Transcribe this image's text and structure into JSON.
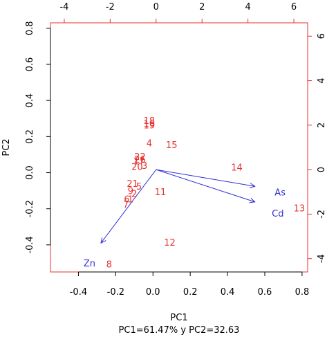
{
  "chart_data": {
    "type": "scatter",
    "subtype": "pca-biplot",
    "xlabel": "PC1",
    "ylabel": "PC2",
    "subtitle": "PC1=61.47% y PC2=32.63",
    "xlim": [
      -0.55,
      0.83
    ],
    "ylim": [
      -0.55,
      0.83
    ],
    "x_ticks": [
      -0.4,
      -0.2,
      0.0,
      0.2,
      0.4,
      0.6,
      0.8
    ],
    "y_ticks": [
      -0.4,
      -0.2,
      0.0,
      0.2,
      0.4,
      0.6,
      0.8
    ],
    "loadings_xlim": [
      -4.6,
      6.6
    ],
    "loadings_ylim": [
      -4.6,
      6.6
    ],
    "top_ticks": [
      -4,
      -2,
      0,
      2,
      4,
      6
    ],
    "right_ticks": [
      -4,
      -2,
      0,
      2,
      4,
      6
    ],
    "grid": false,
    "colors": {
      "observations": "#e8312f",
      "variables": "#2f2fd6",
      "frame": "#e8312f"
    },
    "observations": [
      {
        "label": "18",
        "x": -0.02,
        "y": 0.29
      },
      {
        "label": "16",
        "x": -0.02,
        "y": 0.275
      },
      {
        "label": "19",
        "x": -0.02,
        "y": 0.265
      },
      {
        "label": "15",
        "x": 0.1,
        "y": 0.155
      },
      {
        "label": "4",
        "x": -0.02,
        "y": 0.165
      },
      {
        "label": "22",
        "x": -0.07,
        "y": 0.09
      },
      {
        "label": "26",
        "x": -0.07,
        "y": 0.075
      },
      {
        "label": "17",
        "x": -0.075,
        "y": 0.065
      },
      {
        "label": "20",
        "x": -0.085,
        "y": 0.035
      },
      {
        "label": "3",
        "x": -0.045,
        "y": 0.04
      },
      {
        "label": "14",
        "x": 0.45,
        "y": 0.03
      },
      {
        "label": "21",
        "x": -0.11,
        "y": -0.06
      },
      {
        "label": "5",
        "x": -0.075,
        "y": -0.075
      },
      {
        "label": "11",
        "x": 0.04,
        "y": -0.105
      },
      {
        "label": "9",
        "x": -0.12,
        "y": -0.1
      },
      {
        "label": "2",
        "x": -0.1,
        "y": -0.115
      },
      {
        "label": "6",
        "x": -0.14,
        "y": -0.145
      },
      {
        "label": "1",
        "x": -0.12,
        "y": -0.145
      },
      {
        "label": "7",
        "x": -0.145,
        "y": -0.175
      },
      {
        "label": "13",
        "x": 0.785,
        "y": -0.195
      },
      {
        "label": "12",
        "x": 0.09,
        "y": -0.385
      },
      {
        "label": "8",
        "x": -0.235,
        "y": -0.505
      }
    ],
    "loadings": [
      {
        "name": "As",
        "x": 4.3,
        "y": -0.75,
        "label_x": 5.4,
        "label_y": -1.0
      },
      {
        "name": "Cd",
        "x": 4.3,
        "y": -1.45,
        "label_x": 5.3,
        "label_y": -1.95
      },
      {
        "name": "Zn",
        "x": -2.4,
        "y": -3.3,
        "label_x": -2.9,
        "label_y": -4.2
      }
    ]
  }
}
